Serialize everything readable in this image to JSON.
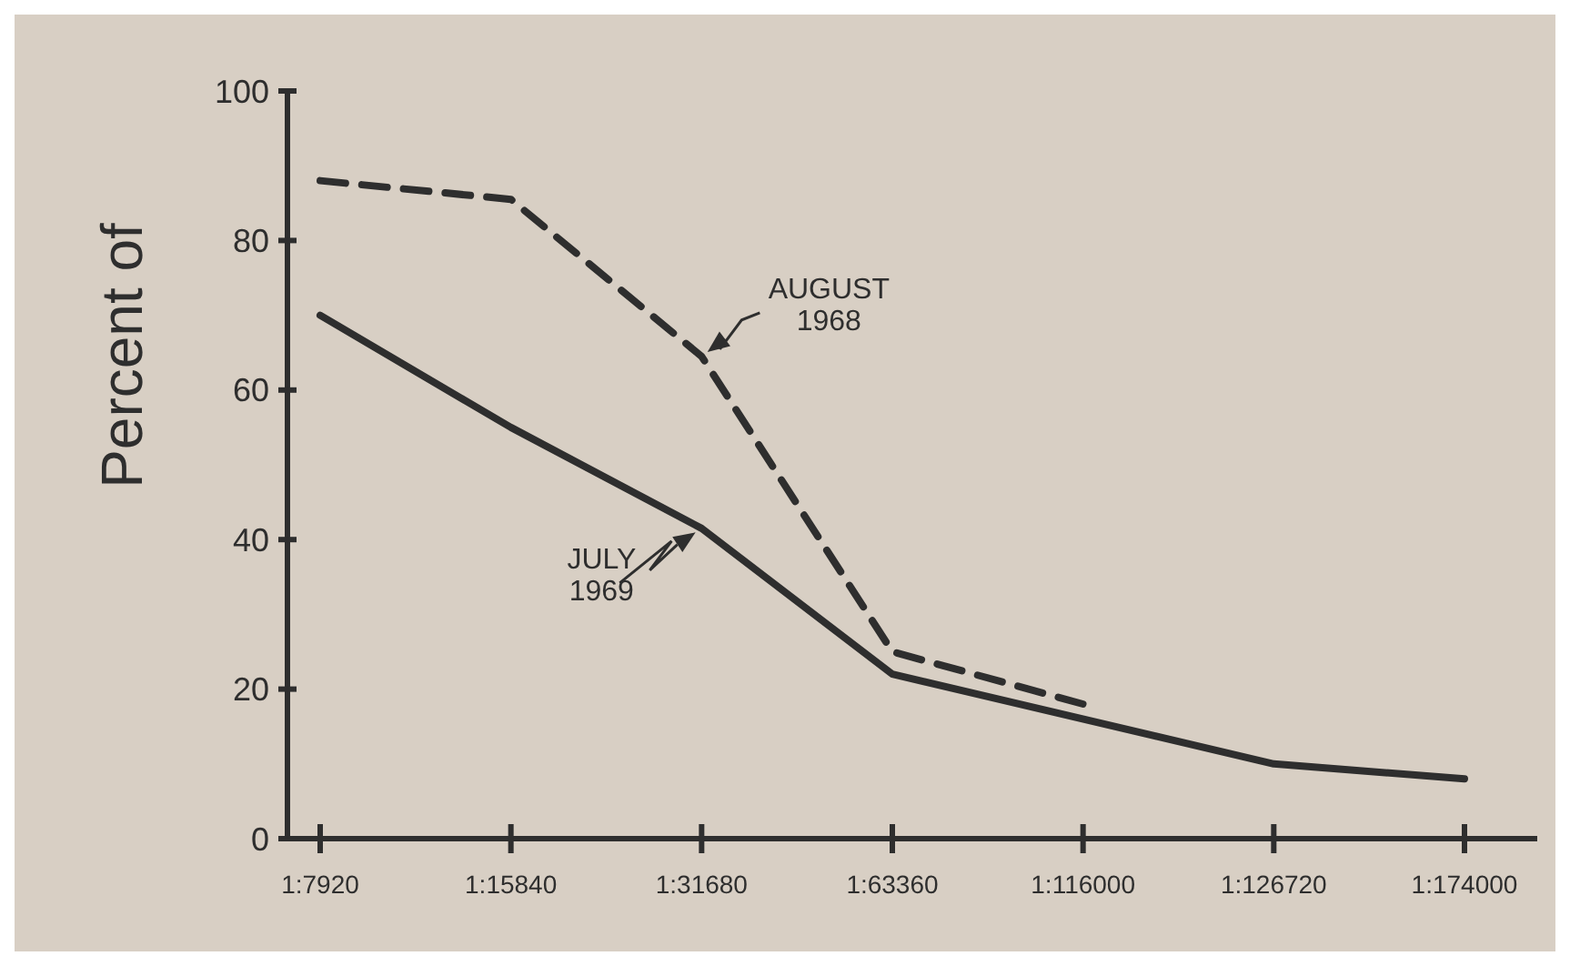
{
  "chart_data": {
    "type": "line",
    "ylabel": "Percent of",
    "categories": [
      "1:7920",
      "1:15840",
      "1:31680",
      "1:63360",
      "1:116000",
      "1:126720",
      "1:174000"
    ],
    "series": [
      {
        "name": "AUGUST 1968",
        "color": "#2e2e2e",
        "line_style": "dashed",
        "values": [
          88,
          85.5,
          64.5,
          25,
          18,
          null,
          null
        ]
      },
      {
        "name": "JULY 1969",
        "color": "#2e2e2e",
        "line_style": "solid",
        "values": [
          70,
          55,
          41.5,
          22,
          null,
          10,
          8
        ]
      }
    ],
    "ylim": [
      0,
      100
    ],
    "yticks": [
      0,
      20,
      40,
      60,
      80,
      100
    ],
    "grid": false,
    "marker": "none"
  }
}
